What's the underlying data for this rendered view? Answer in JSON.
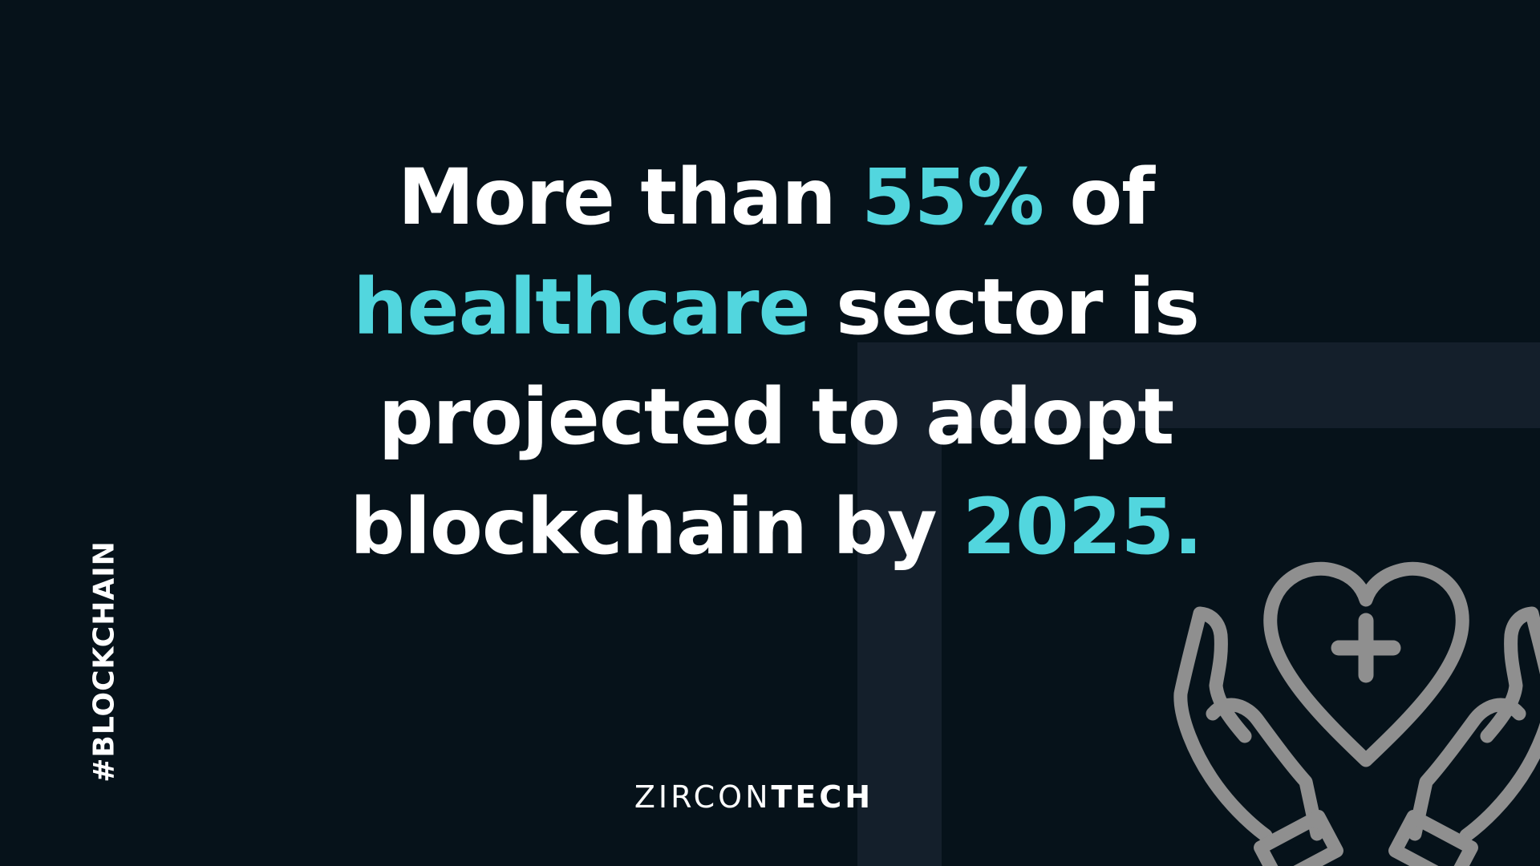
{
  "headline": {
    "line1_a": "More than ",
    "line1_highlight": "55%",
    "line1_b": " of",
    "line2_highlight": "healthcare",
    "line2_b": " sector is",
    "line3": "projected to adopt",
    "line4_a": "blockchain by ",
    "line4_highlight": "2025."
  },
  "hashtag": "#BLOCKCHAIN",
  "brand": {
    "light": "ZIRCON",
    "bold": "TECH"
  },
  "colors": {
    "background": "#06121a",
    "panel": "#141f2b",
    "highlight": "#52d6de",
    "text": "#ffffff",
    "icon": "#8f8f8f"
  },
  "icons": {
    "care": "hands-holding-heart-medical-icon"
  }
}
